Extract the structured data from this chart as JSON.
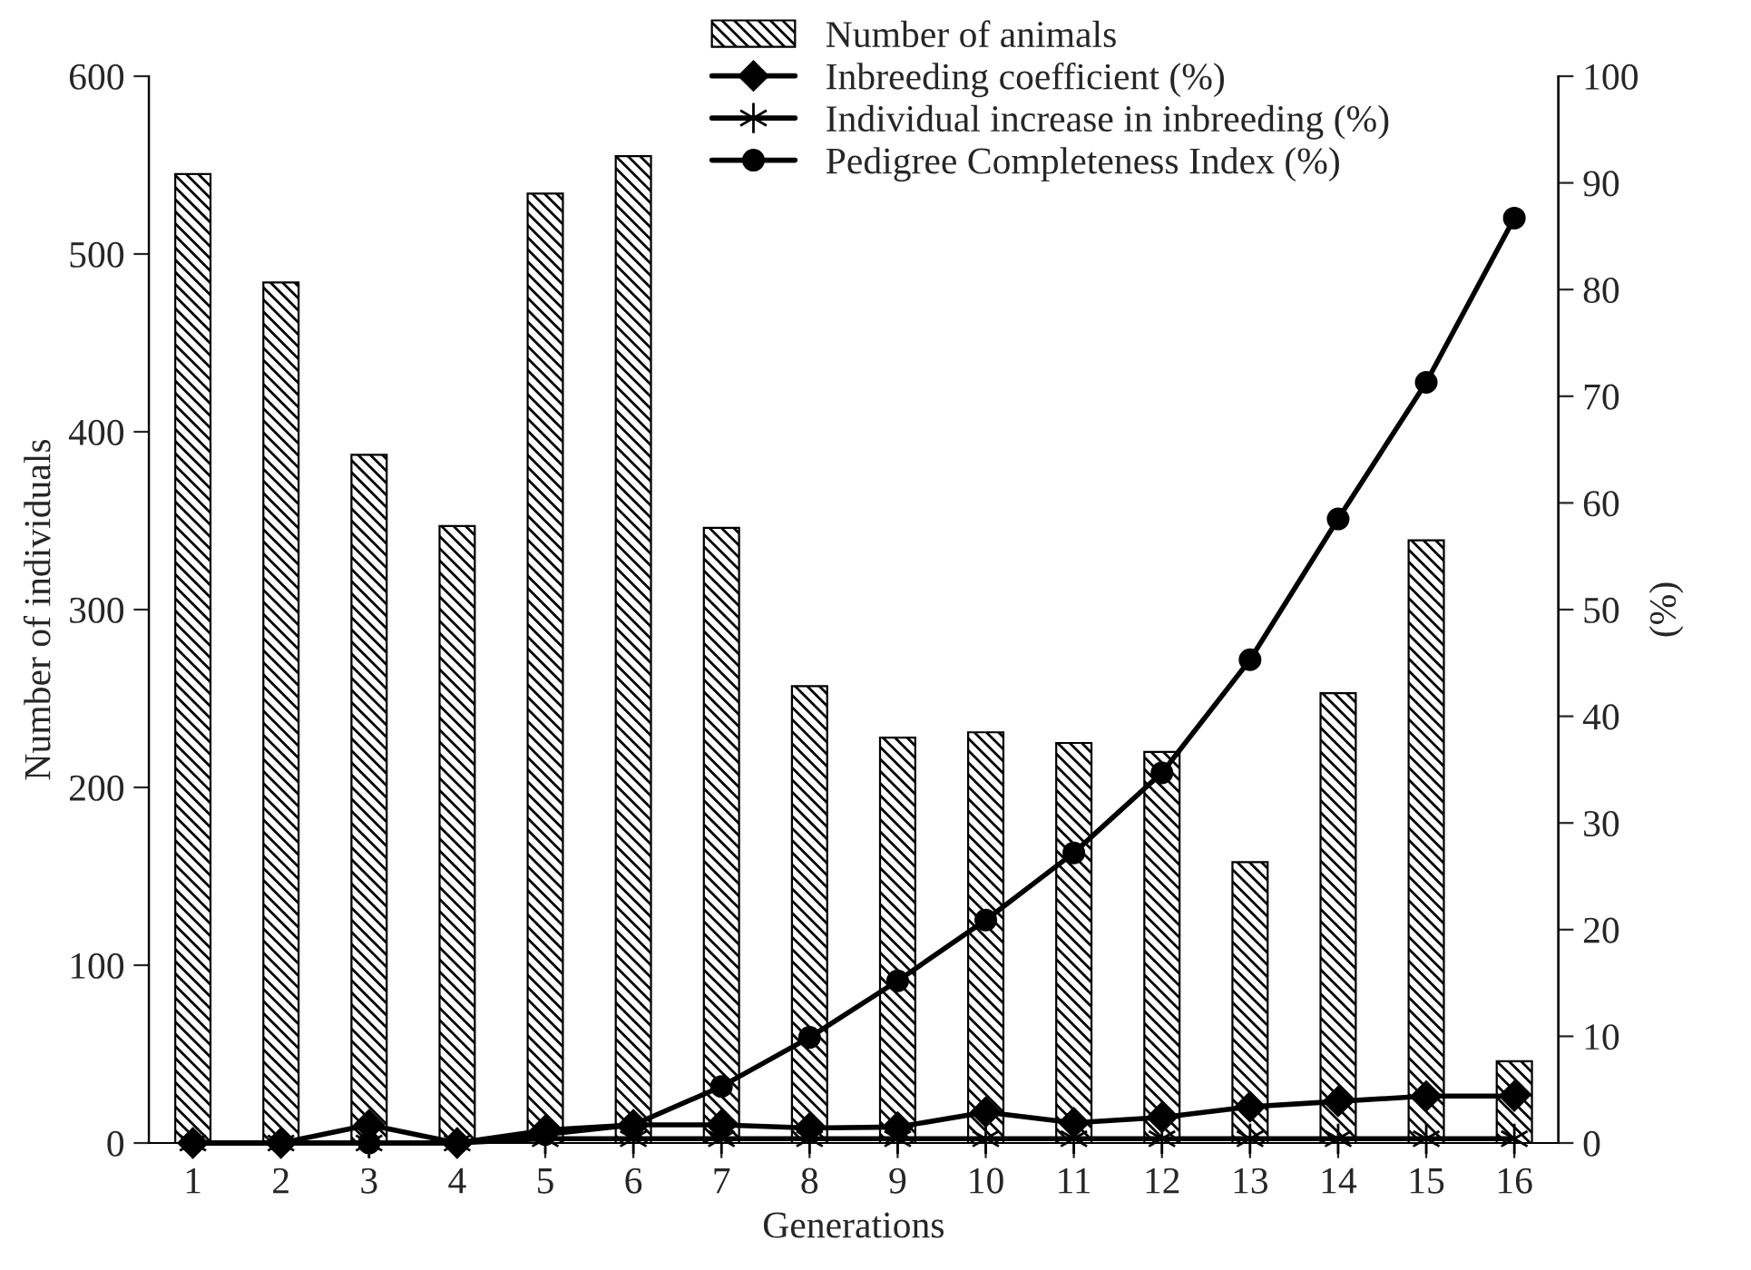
{
  "chart_data": {
    "type": "bar",
    "xlabel": "Generations",
    "ylabel": "Number of individuals",
    "y2label": "(%)",
    "categories": [
      "1",
      "2",
      "3",
      "4",
      "5",
      "6",
      "7",
      "8",
      "9",
      "10",
      "11",
      "12",
      "13",
      "14",
      "15",
      "16"
    ],
    "series": [
      {
        "name": "Number of animals",
        "color": "#000000",
        "values": [
          545,
          484,
          387,
          347,
          534,
          555,
          346,
          257,
          228,
          231,
          225,
          220,
          158,
          253,
          339,
          46
        ]
      },
      {
        "name": "Inbreeding coefficient (%)",
        "type": "line",
        "axis": "y2",
        "color": "#000000",
        "marker": "diamond",
        "values": [
          0,
          0,
          1.7,
          0,
          1.2,
          1.7,
          1.7,
          1.4,
          1.5,
          2.9,
          1.9,
          2.4,
          3.4,
          3.9,
          4.4,
          4.4
        ]
      },
      {
        "name": "Individual increase in inbreeding (%)",
        "type": "line",
        "axis": "y2",
        "color": "#000000",
        "marker": "cross",
        "values": [
          0,
          0,
          0,
          0,
          0.4,
          0.4,
          0.4,
          0.4,
          0.4,
          0.4,
          0.4,
          0.4,
          0.4,
          0.4,
          0.4,
          0.4
        ]
      },
      {
        "name": "Pedigree Completeness Index (%)",
        "type": "line",
        "axis": "y2",
        "color": "#000000",
        "marker": "circle",
        "values": [
          0,
          0,
          0,
          0,
          0.8,
          1.7,
          5.3,
          9.9,
          15.2,
          20.9,
          27.2,
          34.7,
          45.3,
          58.5,
          71.3,
          86.7
        ]
      }
    ],
    "ylim": [
      0,
      600
    ],
    "yticks": [
      0,
      100,
      200,
      300,
      400,
      500,
      600
    ],
    "y2lim": [
      0,
      100
    ],
    "y2ticks": [
      0,
      10,
      20,
      30,
      40,
      50,
      60,
      70,
      80,
      90,
      100
    ],
    "legend": "top",
    "grid": false
  }
}
